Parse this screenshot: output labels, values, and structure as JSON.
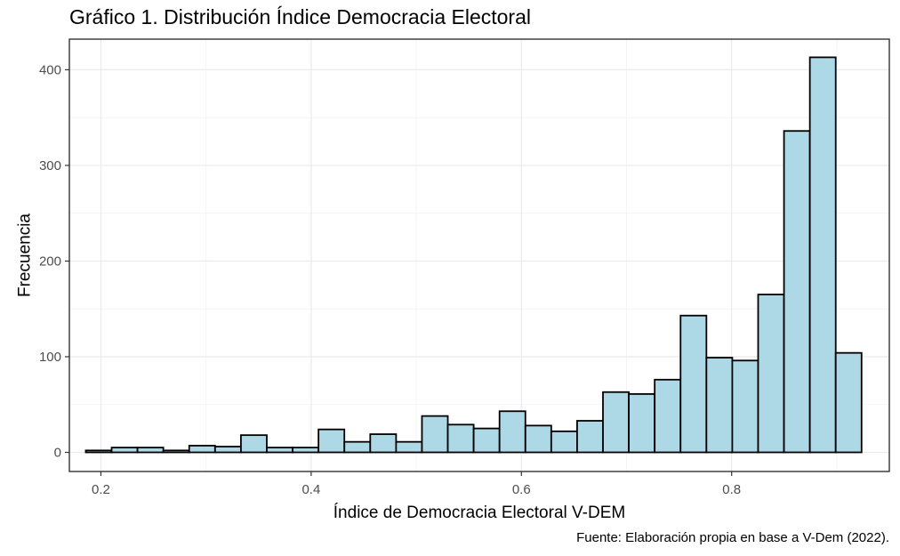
{
  "chart_data": {
    "type": "bar",
    "title": "Gráfico 1. Distribución Índice Democracia Electoral",
    "xlabel": "Índice de Democracia Electoral V-DEM",
    "ylabel": "Frecuencia",
    "caption": "Fuente: Elaboración propia en base a V-Dem (2022).",
    "xlim": [
      0.17,
      0.95
    ],
    "ylim": [
      -20,
      432
    ],
    "x_ticks": [
      0.2,
      0.4,
      0.6,
      0.8
    ],
    "x_tick_labels": [
      "0.2",
      "0.4",
      "0.6",
      "0.8"
    ],
    "y_ticks": [
      0,
      100,
      200,
      300,
      400
    ],
    "y_tick_labels": [
      "0",
      "100",
      "200",
      "300",
      "400"
    ],
    "grid": true,
    "bin_width": 0.0246,
    "bin_start": 0.1856,
    "values": [
      2,
      5,
      5,
      2,
      7,
      6,
      18,
      5,
      5,
      24,
      11,
      19,
      11,
      38,
      29,
      25,
      43,
      28,
      22,
      33,
      63,
      61,
      76,
      143,
      99,
      96,
      165,
      336,
      413,
      104
    ],
    "fill_color": "#add8e6",
    "border_color": "#000000"
  }
}
